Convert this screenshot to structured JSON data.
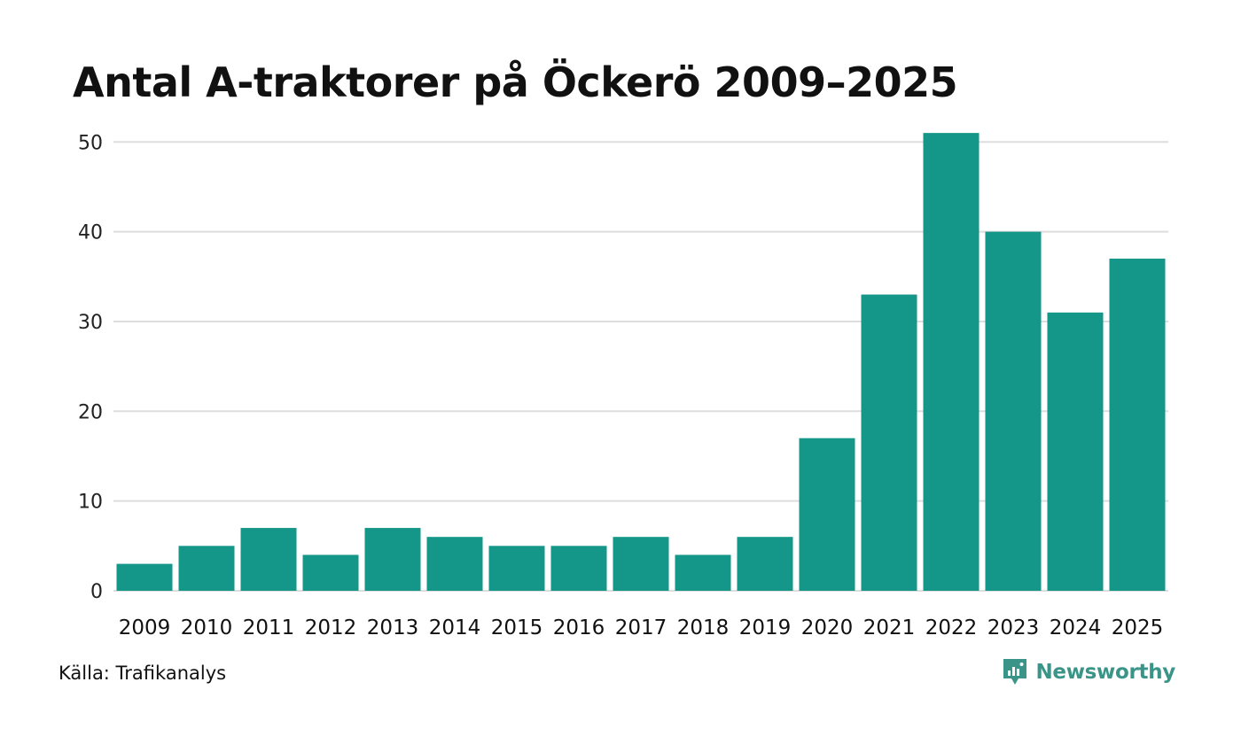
{
  "chart_data": {
    "type": "bar",
    "title": "Antal A-traktorer på Öckerö 2009–2025",
    "categories": [
      "2009",
      "2010",
      "2011",
      "2012",
      "2013",
      "2014",
      "2015",
      "2016",
      "2017",
      "2018",
      "2019",
      "2020",
      "2021",
      "2022",
      "2023",
      "2024",
      "2025"
    ],
    "values": [
      3,
      5,
      7,
      4,
      7,
      6,
      5,
      5,
      6,
      4,
      6,
      17,
      33,
      51,
      40,
      31,
      37
    ],
    "yticks": [
      0,
      10,
      20,
      30,
      40,
      50
    ],
    "ylim": [
      0,
      52
    ],
    "xlabel": "",
    "ylabel": "",
    "grid": true,
    "bar_color": "#149688",
    "grid_color": "#dddddd"
  },
  "footer": {
    "source": "Källa: Trafikanalys",
    "brand": "Newsworthy",
    "brand_color": "#3b9488",
    "brand_icon": "newsworthy-logo-icon"
  }
}
